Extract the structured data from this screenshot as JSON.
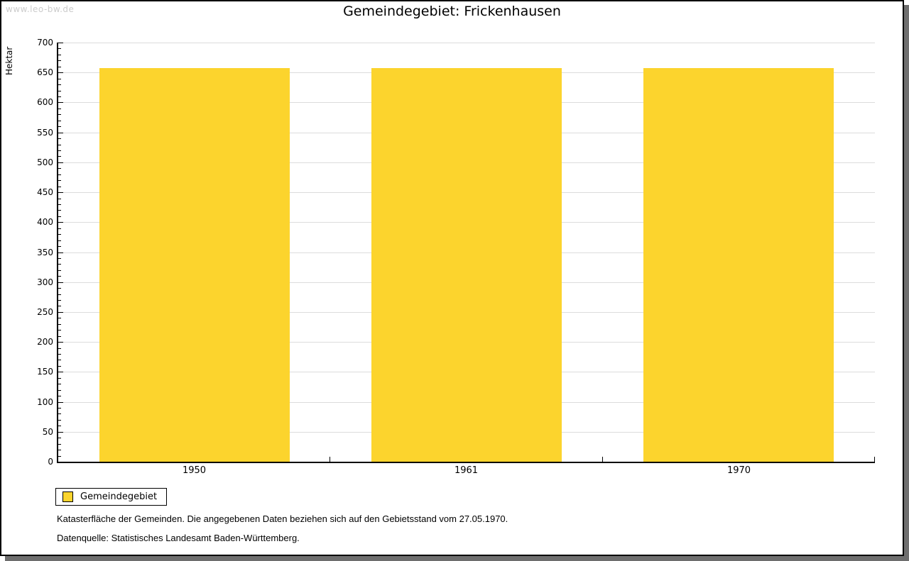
{
  "watermark": "www.leo-bw.de",
  "title": "Gemeindegebiet: Frickenhausen",
  "chart_data": {
    "type": "bar",
    "title": "Gemeindegebiet: Frickenhausen",
    "categories": [
      "1950",
      "1961",
      "1970"
    ],
    "series": [
      {
        "name": "Gemeindegebiet",
        "values": [
          657,
          657,
          657
        ]
      }
    ],
    "xlabel": "",
    "ylabel": "Hektar",
    "ylim": [
      0,
      700
    ],
    "ytick_step": 50,
    "minor_tick_step": 10,
    "grid": true,
    "bar_color": "#fcd42d",
    "legend_position": "bottom-left"
  },
  "legend": {
    "items": [
      {
        "label": "Gemeindegebiet",
        "color": "#fcd42d"
      }
    ]
  },
  "footer": {
    "line1": "Katasterfläche der Gemeinden. Die angegebenen Daten beziehen sich auf den Gebietsstand vom 27.05.1970.",
    "line2": "Datenquelle: Statistisches Landesamt Baden-Württemberg."
  },
  "colors": {
    "axis": "#000000",
    "gridline": "#dcdcdc",
    "frame_border": "#000000",
    "frame_shadow": "#6e6e6e",
    "watermark": "#cccccc"
  }
}
